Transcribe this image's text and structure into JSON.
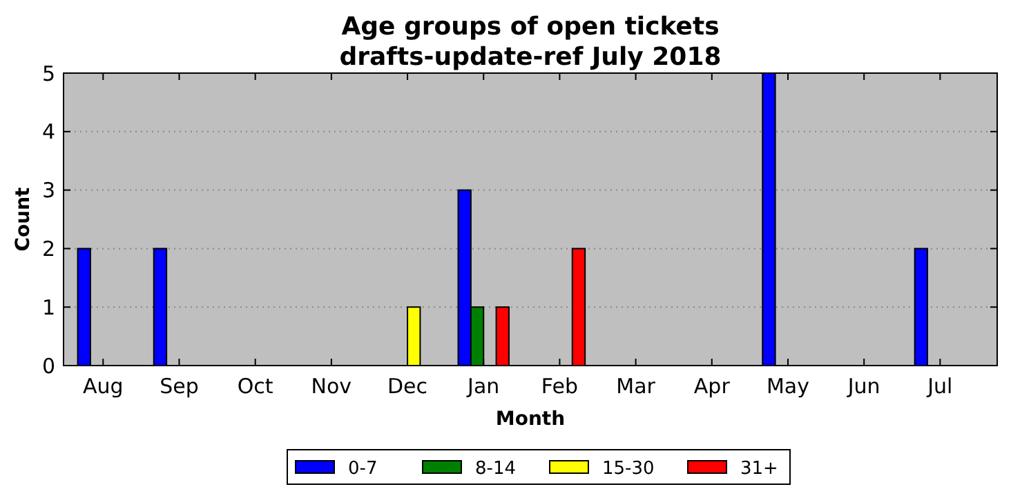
{
  "chart_data": {
    "type": "bar",
    "title": "Age groups of open tickets\ndrafts-update-ref July 2018",
    "xlabel": "Month",
    "ylabel": "Count",
    "categories": [
      "Aug",
      "Sep",
      "Oct",
      "Nov",
      "Dec",
      "Jan",
      "Feb",
      "Mar",
      "Apr",
      "May",
      "Jun",
      "Jul"
    ],
    "series": [
      {
        "name": "0-7",
        "color": "#0000ff",
        "values": [
          2,
          2,
          0,
          0,
          0,
          3,
          0,
          0,
          0,
          5,
          0,
          2
        ]
      },
      {
        "name": "8-14",
        "color": "#008000",
        "values": [
          0,
          0,
          0,
          0,
          0,
          1,
          0,
          0,
          0,
          0,
          0,
          0
        ]
      },
      {
        "name": "15-30",
        "color": "#ffff00",
        "values": [
          0,
          0,
          0,
          0,
          1,
          0,
          0,
          0,
          0,
          0,
          0,
          0
        ]
      },
      {
        "name": "31+",
        "color": "#ff0000",
        "values": [
          0,
          0,
          0,
          0,
          0,
          1,
          2,
          0,
          0,
          0,
          0,
          0
        ]
      }
    ],
    "ylim": [
      0,
      5
    ],
    "yticks": [
      0,
      1,
      2,
      3,
      4,
      5
    ],
    "grid": "y",
    "legend": "bottom"
  }
}
